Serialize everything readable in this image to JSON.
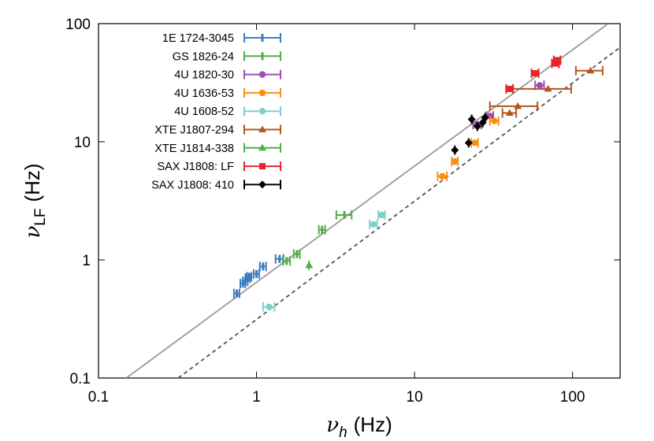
{
  "chart_data": {
    "type": "scatter",
    "x_label": {
      "symbol": "ν",
      "subscript": "h",
      "unit": "(Hz)"
    },
    "y_label": {
      "symbol": "ν",
      "subscript": "LF",
      "unit": "(Hz)"
    },
    "xscale": "log",
    "yscale": "log",
    "xlim": [
      0.1,
      200
    ],
    "ylim": [
      0.1,
      100
    ],
    "xticks": [
      0.1,
      1,
      10,
      100
    ],
    "yticks": [
      0.1,
      1,
      10,
      100
    ],
    "legend": "upper left",
    "lines": [
      {
        "style": "solid",
        "color": "#999999",
        "x": [
          0.15,
          168
        ],
        "y": [
          0.1,
          100
        ]
      },
      {
        "style": "dashed",
        "color": "#555555",
        "x": [
          0.32,
          200
        ],
        "y": [
          0.1,
          63
        ]
      }
    ],
    "series": [
      {
        "name": "1E 1724-3045",
        "color": "#3a7dbf",
        "marker": "none",
        "x": [
          0.75,
          0.82,
          0.85,
          0.88,
          0.9,
          1.0,
          1.1,
          1.4
        ],
        "values": [
          0.52,
          0.63,
          0.66,
          0.7,
          0.72,
          0.76,
          0.88,
          1.02
        ],
        "xerr": [
          0.03,
          0.03,
          0.03,
          0.03,
          0.03,
          0.04,
          0.05,
          0.08
        ]
      },
      {
        "name": "GS 1826-24",
        "color": "#4daf4a",
        "marker": "none",
        "x": [
          1.55,
          1.8,
          2.6,
          3.6
        ],
        "values": [
          0.98,
          1.12,
          1.8,
          2.4
        ],
        "xerr": [
          0.08,
          0.08,
          0.12,
          0.4
        ]
      },
      {
        "name": "4U 1820-30",
        "color": "#9c4fb1",
        "marker": "circle",
        "x": [
          25,
          30,
          62
        ],
        "values": [
          14,
          16.5,
          30
        ],
        "xerr": [
          1.5,
          1.5,
          4
        ]
      },
      {
        "name": "4U 1636-53",
        "color": "#f98f10",
        "marker": "circle",
        "x": [
          15,
          18,
          24,
          32
        ],
        "values": [
          5.1,
          6.8,
          9.8,
          15
        ],
        "xerr": [
          1,
          0.8,
          1.2,
          2
        ]
      },
      {
        "name": "4U 1608-52",
        "color": "#80d0c8",
        "marker": "circle",
        "x": [
          1.2,
          5.5,
          6.2
        ],
        "values": [
          0.4,
          2.0,
          2.4
        ],
        "xerr": [
          0.1,
          0.3,
          0.3
        ]
      },
      {
        "name": "XTE J1807-294",
        "color": "#b1571f",
        "marker": "triangle",
        "x": [
          40,
          45,
          70,
          130
        ],
        "values": [
          17.5,
          20,
          28,
          40
        ],
        "xerr": [
          4,
          15,
          28,
          25
        ]
      },
      {
        "name": "XTE J1814-338",
        "color": "#4daf4a",
        "marker": "triangle",
        "x": [
          2.15
        ],
        "values": [
          0.9
        ],
        "xerr": [
          0
        ]
      },
      {
        "name": "SAX J1808: LF",
        "color": "#e8232a",
        "marker": "square",
        "x": [
          40,
          58,
          78,
          80
        ],
        "values": [
          28,
          38,
          46,
          49
        ],
        "xerr": [
          2,
          3,
          4,
          4
        ]
      },
      {
        "name": "SAX J1808: 410",
        "color": "#000000",
        "marker": "diamond",
        "x": [
          18,
          22,
          23,
          25,
          27,
          28
        ],
        "values": [
          8.5,
          9.8,
          15.5,
          13.5,
          14.5,
          16
        ],
        "xerr": [
          0,
          0,
          0,
          0,
          0,
          0
        ]
      }
    ]
  }
}
